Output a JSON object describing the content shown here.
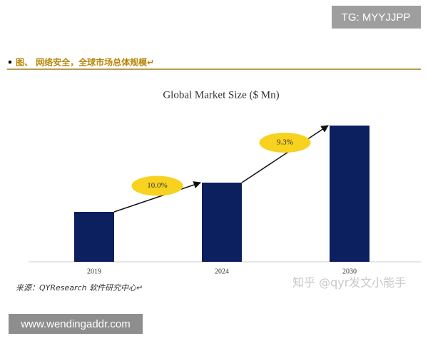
{
  "badge": "TG: MYYJJPP",
  "header": "图、 网络安全，全球市场总体规模↵",
  "source": "来源：QYResearch 软件研究中心↵",
  "watermark": "知乎 @qyr发文小能手",
  "footer_url": "www.wendingaddr.com",
  "chart_data": {
    "type": "bar",
    "title": "Global Market Size ($ Mn)",
    "categories": [
      "2019",
      "2024",
      "2030"
    ],
    "values": [
      70,
      111,
      191
    ],
    "color": "#0c1f5e",
    "ylim": [
      0,
      200
    ],
    "annotations": [
      "10.0%",
      "9.3%"
    ],
    "annotation_color": "#f7d21e"
  }
}
